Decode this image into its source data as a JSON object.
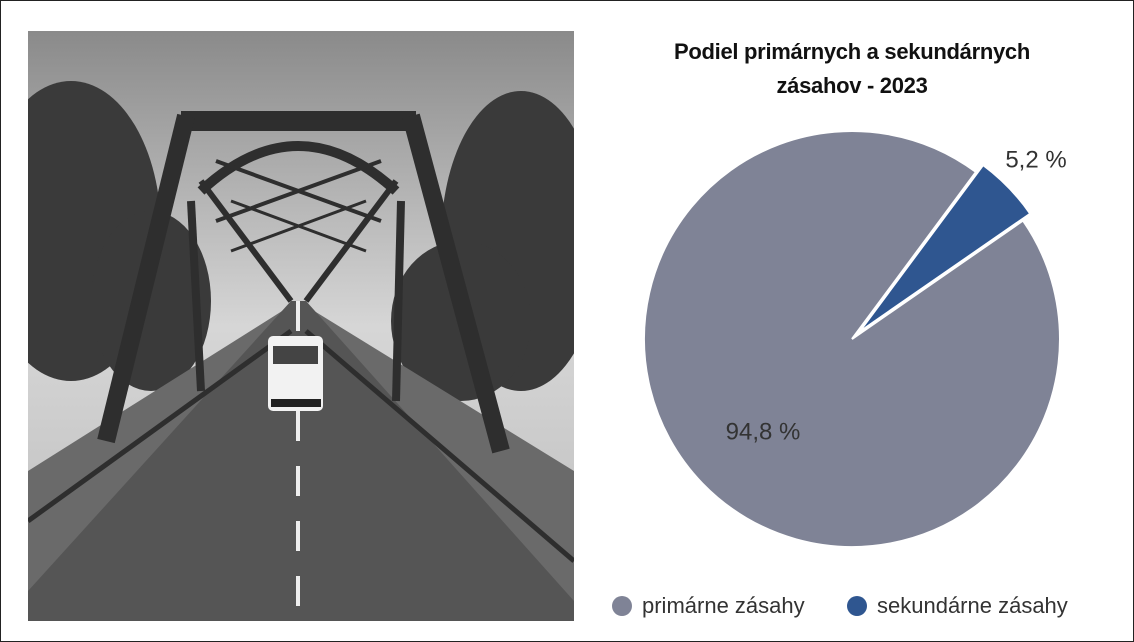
{
  "chart_data": {
    "type": "pie",
    "title": "Podiel primárnych a sekundárnych zásahov - 2023",
    "categories": [
      "primárne zásahy",
      "sekundárne zásahy"
    ],
    "values": [
      94.8,
      5.2
    ],
    "value_labels": [
      "94,8 %",
      "5,2 %"
    ],
    "colors": [
      "#7f8396",
      "#2f5690"
    ],
    "legend": "bottom"
  }
}
